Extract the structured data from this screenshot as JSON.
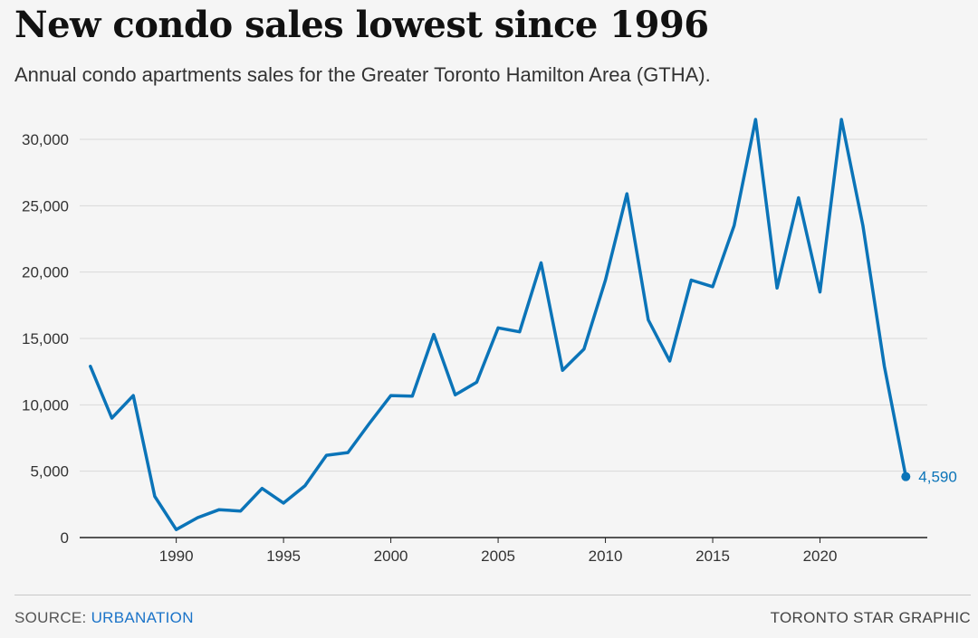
{
  "header": {
    "title": "New condo sales lowest since 1996",
    "subtitle": "Annual condo apartments sales for the Greater Toronto Hamilton Area (GTHA)."
  },
  "footer": {
    "source_prefix": "SOURCE:",
    "source_name": "URBANATION",
    "credit": "TORONTO STAR GRAPHIC"
  },
  "colors": {
    "line": "#0b74b8",
    "grid": "#d9d9d9",
    "baseline": "#222222"
  },
  "chart_data": {
    "type": "line",
    "title": "New condo sales lowest since 1996",
    "subtitle": "Annual condo apartments sales for the Greater Toronto Hamilton Area (GTHA).",
    "x": [
      1986,
      1987,
      1988,
      1989,
      1990,
      1991,
      1992,
      1993,
      1994,
      1995,
      1996,
      1997,
      1998,
      1999,
      2000,
      2001,
      2002,
      2003,
      2004,
      2005,
      2006,
      2007,
      2008,
      2009,
      2010,
      2011,
      2012,
      2013,
      2014,
      2015,
      2016,
      2017,
      2018,
      2019,
      2020,
      2021,
      2022,
      2023,
      2024
    ],
    "series": [
      {
        "values": [
          12900,
          9000,
          10700,
          3100,
          600,
          1500,
          2100,
          2000,
          3700,
          2600,
          3900,
          6200,
          6400,
          8600,
          10700,
          10650,
          15300,
          10750,
          11700,
          15800,
          15500,
          20700,
          12600,
          14200,
          19400,
          25900,
          16400,
          13300,
          19400,
          18900,
          23500,
          31500,
          18800,
          25600,
          18500,
          31500,
          23500,
          12900,
          4590
        ]
      }
    ],
    "xticks": [
      1990,
      1995,
      2000,
      2005,
      2010,
      2015,
      2020
    ],
    "yticks": [
      0,
      5000,
      10000,
      15000,
      20000,
      25000,
      30000
    ],
    "ytick_labels": [
      "0",
      "5,000",
      "10,000",
      "15,000",
      "20,000",
      "25,000",
      "30,000"
    ],
    "xlim": [
      1985.5,
      2025
    ],
    "ylim": [
      0,
      33000
    ],
    "grid": true,
    "end_label": "4,590"
  }
}
